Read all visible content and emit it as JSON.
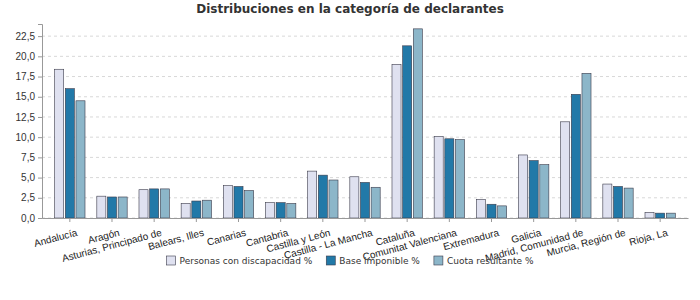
{
  "chart_data": {
    "type": "bar",
    "title": "Distribuciones en la categoría de declarantes",
    "categories": [
      "Andalucía",
      "Aragón",
      "Asturias, Principado de",
      "Balears, Illes",
      "Canarias",
      "Cantabria",
      "Castilla y León",
      "Castilla - La Mancha",
      "Cataluña",
      "Comunitat Valenciana",
      "Extremadura",
      "Galicia",
      "Madrid, Comunidad de",
      "Murcia, Región de",
      "Rioja, La"
    ],
    "series": [
      {
        "name": "Personas con discapacidad %",
        "color": "#dfe1f0",
        "values": [
          18.4,
          2.7,
          3.5,
          1.8,
          4.0,
          1.9,
          5.8,
          5.1,
          19.0,
          10.1,
          2.3,
          7.8,
          11.9,
          4.2,
          0.7
        ]
      },
      {
        "name": "Base imponible %",
        "color": "#2279a8",
        "values": [
          16.0,
          2.6,
          3.6,
          2.1,
          3.9,
          1.9,
          5.3,
          4.4,
          21.3,
          9.8,
          1.7,
          7.1,
          15.3,
          3.9,
          0.6
        ]
      },
      {
        "name": "Cuota resultante %",
        "color": "#8cb6c9",
        "values": [
          14.5,
          2.6,
          3.6,
          2.2,
          3.4,
          1.8,
          4.7,
          3.8,
          23.4,
          9.7,
          1.5,
          6.6,
          17.9,
          3.7,
          0.6
        ]
      }
    ],
    "ylim": [
      0,
      24
    ],
    "yticks": [
      {
        "value": 0,
        "label": "0,0"
      },
      {
        "value": 2.5,
        "label": "2,5"
      },
      {
        "value": 5,
        "label": "5,0"
      },
      {
        "value": 7.5,
        "label": "7,5"
      },
      {
        "value": 10,
        "label": "10,0"
      },
      {
        "value": 12.5,
        "label": "12,5"
      },
      {
        "value": 15,
        "label": "15,0"
      },
      {
        "value": 17.5,
        "label": "17,5"
      },
      {
        "value": 20,
        "label": "20,0"
      },
      {
        "value": 22.5,
        "label": "22,5"
      }
    ],
    "grid": true,
    "legend": "bottom"
  }
}
